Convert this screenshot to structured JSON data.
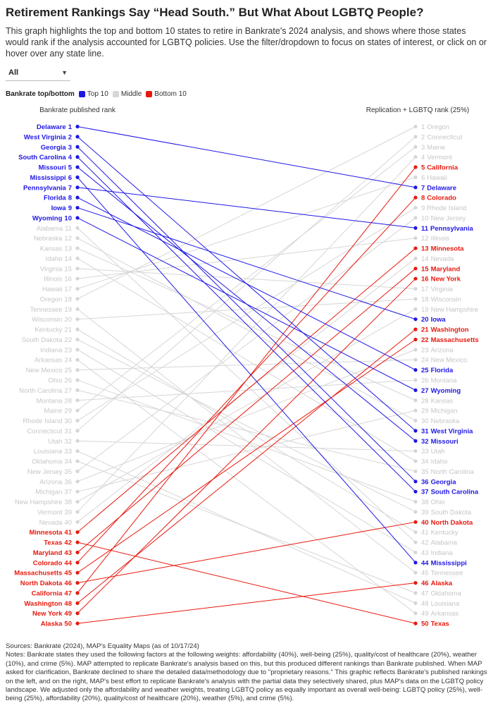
{
  "title": "Retirement Rankings Say “Head South.” But What About LGBTQ People?",
  "subtitle": "This graph highlights the top and bottom 10 states to retire in Bankrate's 2024 analysis, and shows where those states would rank if the analysis accounted for LGBTQ policies. Use the filter/dropdown to focus on states of interest, or click on or hover over any state line.",
  "filter": {
    "value": "All",
    "caret_icon": "chevron-down-icon"
  },
  "legend": {
    "title": "Bankrate top/bottom",
    "items": [
      {
        "label": "Top 10",
        "color": "#1f17e6"
      },
      {
        "label": "Middle",
        "color": "#d6d6d6"
      },
      {
        "label": "Bottom 10",
        "color": "#e8190f"
      }
    ]
  },
  "colors": {
    "top": "#1f17e6",
    "middle": "#d6d6d6",
    "bottom": "#e8190f",
    "middle_text": "#c6c6c6"
  },
  "chart_data": {
    "type": "slope",
    "left_axis_title": "Bankrate published rank",
    "right_axis_title": "Replication + LGBTQ rank (25%)",
    "rank_range": [
      1,
      50
    ],
    "states": [
      {
        "state": "Delaware",
        "left": 1,
        "right": 7,
        "group": "top"
      },
      {
        "state": "West Virginia",
        "left": 2,
        "right": 31,
        "group": "top"
      },
      {
        "state": "Georgia",
        "left": 3,
        "right": 36,
        "group": "top"
      },
      {
        "state": "South Carolina",
        "left": 4,
        "right": 37,
        "group": "top"
      },
      {
        "state": "Missouri",
        "left": 5,
        "right": 32,
        "group": "top"
      },
      {
        "state": "Mississippi",
        "left": 6,
        "right": 44,
        "group": "top"
      },
      {
        "state": "Pennsylvania",
        "left": 7,
        "right": 11,
        "group": "top"
      },
      {
        "state": "Florida",
        "left": 8,
        "right": 25,
        "group": "top"
      },
      {
        "state": "Iowa",
        "left": 9,
        "right": 20,
        "group": "top"
      },
      {
        "state": "Wyoming",
        "left": 10,
        "right": 27,
        "group": "top"
      },
      {
        "state": "Alabama",
        "left": 11,
        "right": 42,
        "group": "middle"
      },
      {
        "state": "Nebraska",
        "left": 12,
        "right": 30,
        "group": "middle"
      },
      {
        "state": "Kansas",
        "left": 13,
        "right": 28,
        "group": "middle"
      },
      {
        "state": "Idaho",
        "left": 14,
        "right": 34,
        "group": "middle"
      },
      {
        "state": "Virginia",
        "left": 15,
        "right": 17,
        "group": "middle"
      },
      {
        "state": "Illinois",
        "left": 16,
        "right": 12,
        "group": "middle"
      },
      {
        "state": "Hawaii",
        "left": 17,
        "right": 6,
        "group": "middle"
      },
      {
        "state": "Oregon",
        "left": 18,
        "right": 1,
        "group": "middle"
      },
      {
        "state": "Tennessee",
        "left": 19,
        "right": 45,
        "group": "middle"
      },
      {
        "state": "Wisconsin",
        "left": 20,
        "right": 18,
        "group": "middle"
      },
      {
        "state": "Kentucky",
        "left": 21,
        "right": 41,
        "group": "middle"
      },
      {
        "state": "South Dakota",
        "left": 22,
        "right": 39,
        "group": "middle"
      },
      {
        "state": "Indiana",
        "left": 23,
        "right": 43,
        "group": "middle"
      },
      {
        "state": "Arkansas",
        "left": 24,
        "right": 49,
        "group": "middle"
      },
      {
        "state": "New Mexico",
        "left": 25,
        "right": 24,
        "group": "middle"
      },
      {
        "state": "Ohio",
        "left": 26,
        "right": 38,
        "group": "middle"
      },
      {
        "state": "North Carolina",
        "left": 27,
        "right": 35,
        "group": "middle"
      },
      {
        "state": "Montana",
        "left": 28,
        "right": 26,
        "group": "middle"
      },
      {
        "state": "Maine",
        "left": 29,
        "right": 3,
        "group": "middle"
      },
      {
        "state": "Rhode Island",
        "left": 30,
        "right": 9,
        "group": "middle"
      },
      {
        "state": "Connecticut",
        "left": 31,
        "right": 2,
        "group": "middle"
      },
      {
        "state": "Utah",
        "left": 32,
        "right": 33,
        "group": "middle"
      },
      {
        "state": "Louisiana",
        "left": 33,
        "right": 48,
        "group": "middle"
      },
      {
        "state": "Oklahoma",
        "left": 34,
        "right": 47,
        "group": "middle"
      },
      {
        "state": "New Jersey",
        "left": 35,
        "right": 10,
        "group": "middle"
      },
      {
        "state": "Arizona",
        "left": 36,
        "right": 23,
        "group": "middle"
      },
      {
        "state": "Michigan",
        "left": 37,
        "right": 29,
        "group": "middle"
      },
      {
        "state": "New Hampshire",
        "left": 38,
        "right": 19,
        "group": "middle"
      },
      {
        "state": "Vermont",
        "left": 39,
        "right": 4,
        "group": "middle"
      },
      {
        "state": "Nevada",
        "left": 40,
        "right": 14,
        "group": "middle"
      },
      {
        "state": "Minnesota",
        "left": 41,
        "right": 13,
        "group": "bottom"
      },
      {
        "state": "Texas",
        "left": 42,
        "right": 50,
        "group": "bottom"
      },
      {
        "state": "Maryland",
        "left": 43,
        "right": 15,
        "group": "bottom"
      },
      {
        "state": "Colorado",
        "left": 44,
        "right": 8,
        "group": "bottom"
      },
      {
        "state": "Massachusetts",
        "left": 45,
        "right": 22,
        "group": "bottom"
      },
      {
        "state": "North Dakota",
        "left": 46,
        "right": 40,
        "group": "bottom"
      },
      {
        "state": "California",
        "left": 47,
        "right": 5,
        "group": "bottom"
      },
      {
        "state": "Washington",
        "left": 48,
        "right": 21,
        "group": "bottom"
      },
      {
        "state": "New York",
        "left": 49,
        "right": 16,
        "group": "bottom"
      },
      {
        "state": "Alaska",
        "left": 50,
        "right": 46,
        "group": "bottom"
      }
    ]
  },
  "notes": {
    "sources": "Sources: Bankrate (2024), MAP's Equality Maps (as of 10/17/24)",
    "text": "Notes: Bankrate states they used the following factors at the following weights: affordability (40%), well-being (25%), quality/cost of healthcare (20%), weather (10%), and crime (5%). MAP attempted to replicate Bankrate's analysis based on this, but this produced different rankings than Bankrate published. When MAP asked for clarification, Bankrate declined to share the detailed data/methodology due to \"proprietary reasons.\" This graphic reflects Bankrate's published rankings on the left, and on the right, MAP's best effort to replicate Bankrate's analysis with the partial data they selectively shared, plus MAP's data on the LGBTQ policy landscape. We adjusted only the affordability and weather weights, treating LGBTQ policy as equally important as overall well-being: LGBTQ policy (25%), well-being (25%), affordability (20%), quality/cost of healthcare (20%), weather (5%), and crime (5%)."
  }
}
